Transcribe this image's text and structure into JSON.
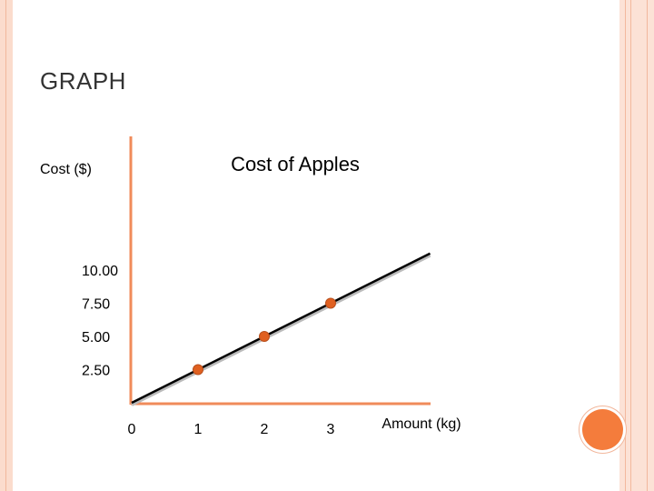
{
  "slide": {
    "title": "GRAPH",
    "accent_color": "#f47c3c",
    "border_color": "#fbdccd"
  },
  "chart_data": {
    "type": "line",
    "title": "Cost of Apples",
    "xlabel": "Amount (kg)",
    "ylabel": "Cost ($)",
    "x_ticks": [
      "0",
      "1",
      "2",
      "3"
    ],
    "y_ticks": [
      "2.50",
      "5.00",
      "7.50",
      "10.00"
    ],
    "xlim": [
      0,
      4.5
    ],
    "ylim": [
      0,
      11
    ],
    "line": {
      "x": [
        0,
        4.5
      ],
      "y": [
        0,
        11.25
      ]
    },
    "points": {
      "x": [
        1,
        2,
        3
      ],
      "y": [
        2.5,
        5.0,
        7.5
      ]
    },
    "axis_color": "#f08b5a",
    "line_color": "#000000",
    "point_color": "#e06020",
    "grid": false
  }
}
